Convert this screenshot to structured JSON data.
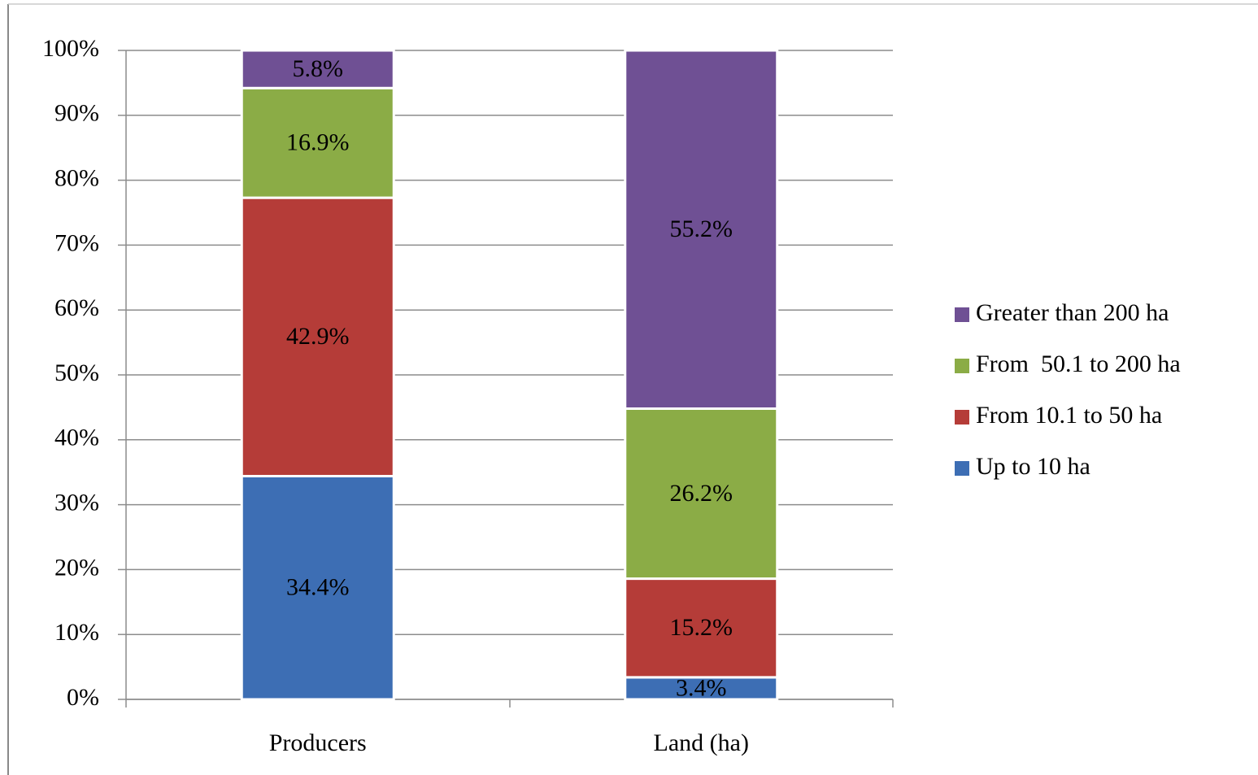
{
  "chart_data": {
    "type": "stacked_bar",
    "categories": [
      "Producers",
      "Land (ha)"
    ],
    "series": [
      {
        "name": "Up to 10 ha",
        "color": "#3d6eb4",
        "values": [
          34.4,
          3.4
        ],
        "value_labels": [
          "34.4%",
          "3.4%"
        ]
      },
      {
        "name": "From 10.1 to 50 ha",
        "color": "#b53c38",
        "values": [
          42.9,
          15.2
        ],
        "value_labels": [
          "42.9%",
          "15.2%"
        ]
      },
      {
        "name": "From  50.1 to 200 ha",
        "color": "#8bac46",
        "values": [
          16.9,
          26.2
        ],
        "value_labels": [
          "16.9%",
          "26.2%"
        ]
      },
      {
        "name": "Greater than 200 ha",
        "color": "#6f5094",
        "values": [
          5.8,
          55.2
        ],
        "value_labels": [
          "5.8%",
          "55.2%"
        ]
      }
    ],
    "ylim": [
      0,
      100
    ],
    "yticks": [
      {
        "value": 0,
        "label": "0%"
      },
      {
        "value": 10,
        "label": "10%"
      },
      {
        "value": 20,
        "label": "20%"
      },
      {
        "value": 30,
        "label": "30%"
      },
      {
        "value": 40,
        "label": "40%"
      },
      {
        "value": 50,
        "label": "50%"
      },
      {
        "value": 60,
        "label": "60%"
      },
      {
        "value": 70,
        "label": "70%"
      },
      {
        "value": 80,
        "label": "80%"
      },
      {
        "value": 90,
        "label": "90%"
      },
      {
        "value": 100,
        "label": "100%"
      }
    ],
    "grid": true,
    "legend": "right"
  }
}
